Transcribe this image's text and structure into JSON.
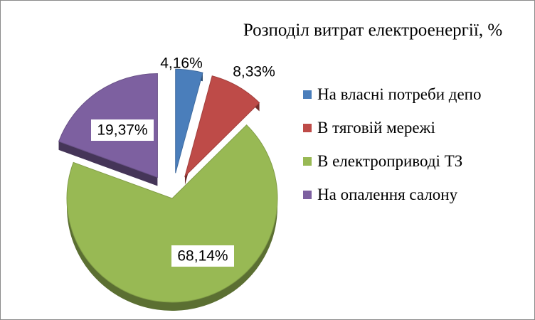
{
  "chart_data": {
    "type": "pie",
    "title": "Розподіл витрат електроенергії, %",
    "slices": [
      {
        "label": "На власні  потреби депо",
        "value": 4.16,
        "display": "4,16%",
        "color": "#4a7ebb"
      },
      {
        "label": "В тяговій мережі",
        "value": 8.33,
        "display": "8,33%",
        "color": "#be4b48"
      },
      {
        "label": "В електроприводі ТЗ",
        "value": 68.14,
        "display": "68,14%",
        "color": "#98b954"
      },
      {
        "label": "На опалення салону",
        "value": 19.37,
        "display": "19,37%",
        "color": "#7d60a0"
      }
    ],
    "legend_position": "right",
    "exploded": true,
    "style": "3d"
  }
}
